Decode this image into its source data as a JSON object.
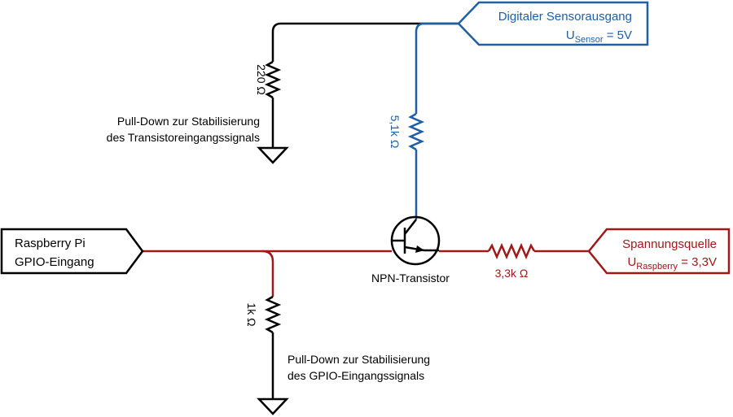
{
  "colors": {
    "black": "#000000",
    "sensor_blue": "#1f5fa6",
    "supply_red": "#a01818"
  },
  "sensor": {
    "title": "Digitaler Sensorausgang",
    "u_symbol": "U",
    "u_sub": "Sensor",
    "u_value": " = 5V"
  },
  "supply": {
    "title": "Spannungsquelle",
    "u_symbol": "U",
    "u_sub": "Raspberry",
    "u_value": " = 3,3V"
  },
  "gpio": {
    "line1": "Raspberry Pi",
    "line2": "GPIO-Eingang"
  },
  "resistors": {
    "r220": "220 Ω",
    "r5k1": "5,1k Ω",
    "r1k": "1k Ω",
    "r3k3": "3,3k Ω"
  },
  "transistor_label": "NPN-Transistor",
  "pulldown_transistor": {
    "line1": "Pull-Down zur Stabilisierung",
    "line2": "des Transistoreingangssignals"
  },
  "pulldown_gpio": {
    "line1": "Pull-Down zur Stabilisierung",
    "line2": "des GPIO-Eingangssignals"
  }
}
